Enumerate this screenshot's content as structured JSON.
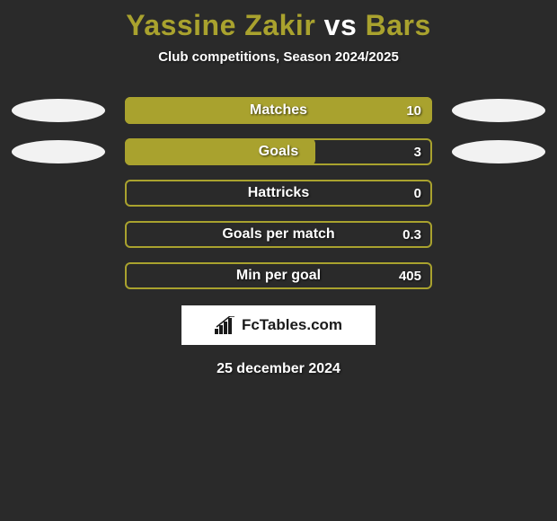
{
  "title": {
    "player1": "Yassine Zakir",
    "vs": "vs",
    "player2": "Bars",
    "color_player": "#a9a22e",
    "color_vs": "#ffffff"
  },
  "subtitle": "Club competitions, Season 2024/2025",
  "oval_color": "#f2f2f2",
  "bar_fill_color": "#a9a22e",
  "bar_outline_color": "#a9a22e",
  "background_color": "#2a2a2a",
  "rows": [
    {
      "label": "Matches",
      "value": "10",
      "fill_pct": 100,
      "left_oval": true,
      "right_oval": true
    },
    {
      "label": "Goals",
      "value": "3",
      "fill_pct": 62,
      "left_oval": true,
      "right_oval": true
    },
    {
      "label": "Hattricks",
      "value": "0",
      "fill_pct": 0,
      "left_oval": false,
      "right_oval": false
    },
    {
      "label": "Goals per match",
      "value": "0.3",
      "fill_pct": 0,
      "left_oval": false,
      "right_oval": false
    },
    {
      "label": "Min per goal",
      "value": "405",
      "fill_pct": 0,
      "left_oval": false,
      "right_oval": false
    }
  ],
  "brand": "FcTables.com",
  "date": "25 december 2024"
}
